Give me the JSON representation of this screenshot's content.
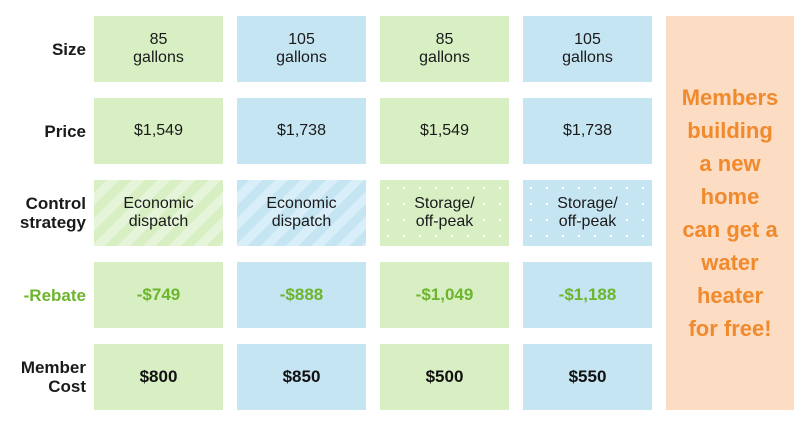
{
  "row_labels": {
    "size": "Size",
    "price": "Price",
    "control_1": "Control",
    "control_2": "strategy",
    "rebate": "-Rebate",
    "cost_1": "Member",
    "cost_2": "Cost"
  },
  "columns": [
    {
      "size_1": "85",
      "size_2": "gallons",
      "price": "$1,549",
      "strategy_1": "Economic",
      "strategy_2": "dispatch",
      "rebate": "-$749",
      "cost": "$800"
    },
    {
      "size_1": "105",
      "size_2": "gallons",
      "price": "$1,738",
      "strategy_1": "Economic",
      "strategy_2": "dispatch",
      "rebate": "-$888",
      "cost": "$850"
    },
    {
      "size_1": "85",
      "size_2": "gallons",
      "price": "$1,549",
      "strategy_1": "Storage/",
      "strategy_2": "off-peak",
      "rebate": "-$1,049",
      "cost": "$500"
    },
    {
      "size_1": "105",
      "size_2": "gallons",
      "price": "$1,738",
      "strategy_1": "Storage/",
      "strategy_2": "off-peak",
      "rebate": "-$1,188",
      "cost": "$550"
    }
  ],
  "promo": {
    "line_1": "Members",
    "line_2": "building",
    "line_3": "a new",
    "line_4": "home",
    "line_5": "can get a",
    "line_6": "water",
    "line_7": "heater",
    "line_8": "for free!"
  },
  "colors": {
    "green": "#d8efc4",
    "blue": "#c6e5f2",
    "rebate_text": "#6cb52d",
    "promo_bg": "#fcdcc3",
    "promo_text": "#f08a2c"
  }
}
